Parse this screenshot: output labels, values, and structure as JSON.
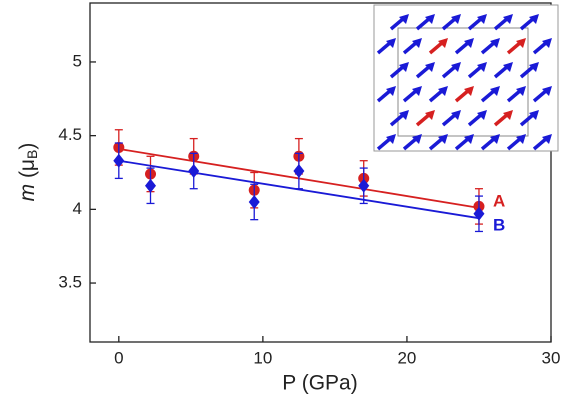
{
  "chart_data": {
    "type": "scatter",
    "xlabel": "P (GPa)",
    "ylabel_parts": [
      "m",
      " (μ",
      "B",
      ")"
    ],
    "xlim": [
      -2,
      30
    ],
    "xticks": [
      0,
      10,
      20,
      30
    ],
    "ylim": [
      3.1,
      5.4
    ],
    "yticks": [
      3.5,
      4.0,
      4.5,
      5.0
    ],
    "series": [
      {
        "name": "A",
        "color": "#d62020",
        "marker": "circle",
        "x": [
          0,
          2.2,
          5.2,
          9.4,
          12.5,
          17,
          25
        ],
        "values": [
          4.42,
          4.24,
          4.36,
          4.13,
          4.36,
          4.21,
          4.02
        ],
        "errors": [
          0.12,
          0.12,
          0.12,
          0.12,
          0.12,
          0.12,
          0.12
        ],
        "fit_x": [
          0,
          25
        ],
        "fit_values": [
          4.41,
          4.01
        ]
      },
      {
        "name": "B",
        "color": "#1a1ad6",
        "marker": "diamond",
        "x": [
          0,
          2.2,
          5.2,
          9.4,
          12.5,
          17,
          25
        ],
        "values": [
          4.33,
          4.16,
          4.26,
          4.05,
          4.26,
          4.16,
          3.97
        ],
        "errors": [
          0.12,
          0.12,
          0.12,
          0.12,
          0.12,
          0.12,
          0.12
        ],
        "fit_x": [
          0,
          25
        ],
        "fit_values": [
          4.33,
          3.94
        ]
      }
    ]
  }
}
